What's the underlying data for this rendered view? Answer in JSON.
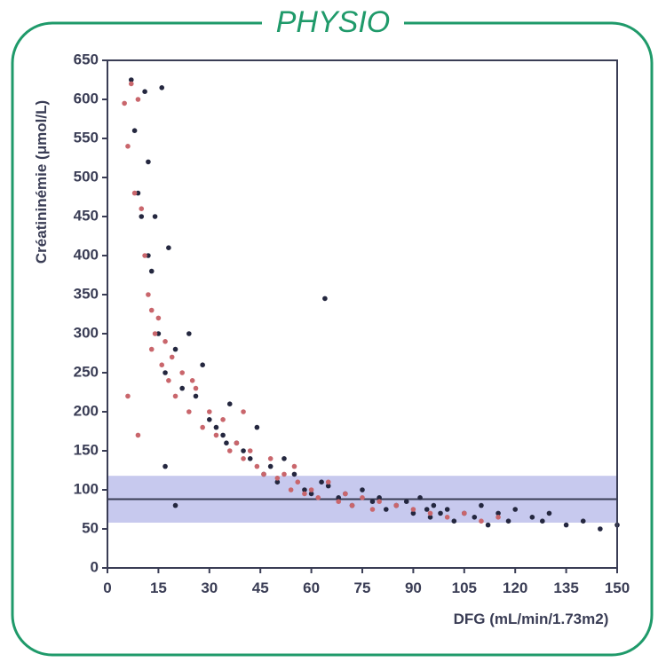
{
  "header": "PHYSIO",
  "chart_data": {
    "type": "scatter",
    "xlabel": "DFG (mL/min/1.73m2)",
    "ylabel": "Créatininémie (μmol/L)",
    "xlim": [
      0,
      150
    ],
    "xticks": [
      0,
      15,
      30,
      45,
      60,
      75,
      90,
      105,
      120,
      135,
      150
    ],
    "ylim": [
      0,
      650
    ],
    "yticks": [
      0,
      50,
      100,
      150,
      200,
      250,
      300,
      350,
      400,
      450,
      500,
      550,
      600,
      650
    ],
    "reference_band": {
      "from": 58,
      "to": 118,
      "color": "#c7c9ee"
    },
    "reference_line": {
      "value": 88,
      "color": "#3a3d55"
    },
    "series": [
      {
        "color": "#24273f",
        "x": [
          7,
          8,
          9,
          10,
          11,
          12,
          13,
          14,
          15,
          16,
          17,
          18,
          20,
          22,
          24,
          26,
          28,
          30,
          32,
          34,
          36,
          38,
          40,
          42,
          44,
          46,
          48,
          50,
          52,
          55,
          58,
          60,
          63,
          65,
          68,
          70,
          72,
          75,
          78,
          80,
          82,
          85,
          88,
          90,
          92,
          94,
          95,
          96,
          98,
          100,
          102,
          105,
          108,
          110,
          112,
          115,
          118,
          120,
          125,
          128,
          130,
          135,
          140,
          145,
          150,
          12,
          20,
          35,
          64,
          17
        ],
        "values": [
          625,
          560,
          480,
          450,
          610,
          400,
          380,
          450,
          300,
          615,
          250,
          410,
          280,
          230,
          300,
          220,
          260,
          190,
          180,
          170,
          210,
          160,
          150,
          140,
          180,
          120,
          130,
          110,
          140,
          120,
          100,
          95,
          110,
          105,
          90,
          95,
          80,
          100,
          85,
          90,
          75,
          80,
          85,
          70,
          90,
          75,
          65,
          80,
          70,
          75,
          60,
          70,
          65,
          80,
          55,
          70,
          60,
          75,
          65,
          60,
          70,
          55,
          60,
          50,
          55,
          520,
          80,
          160,
          345,
          130
        ]
      },
      {
        "color": "#c9666c",
        "x": [
          5,
          6,
          7,
          8,
          9,
          10,
          11,
          12,
          13,
          14,
          15,
          16,
          17,
          18,
          19,
          20,
          22,
          24,
          26,
          28,
          30,
          32,
          34,
          36,
          38,
          40,
          42,
          44,
          46,
          48,
          50,
          52,
          54,
          56,
          58,
          60,
          62,
          65,
          68,
          70,
          72,
          75,
          78,
          80,
          85,
          90,
          95,
          100,
          105,
          110,
          115,
          6,
          9,
          13,
          25,
          40,
          55
        ],
        "values": [
          595,
          540,
          620,
          480,
          600,
          460,
          400,
          350,
          330,
          300,
          320,
          260,
          290,
          240,
          270,
          220,
          250,
          200,
          230,
          180,
          200,
          170,
          190,
          150,
          160,
          140,
          150,
          130,
          120,
          140,
          115,
          120,
          100,
          110,
          95,
          100,
          90,
          110,
          85,
          95,
          80,
          90,
          75,
          85,
          80,
          75,
          70,
          65,
          70,
          60,
          65,
          220,
          170,
          280,
          240,
          200,
          130
        ]
      }
    ]
  }
}
